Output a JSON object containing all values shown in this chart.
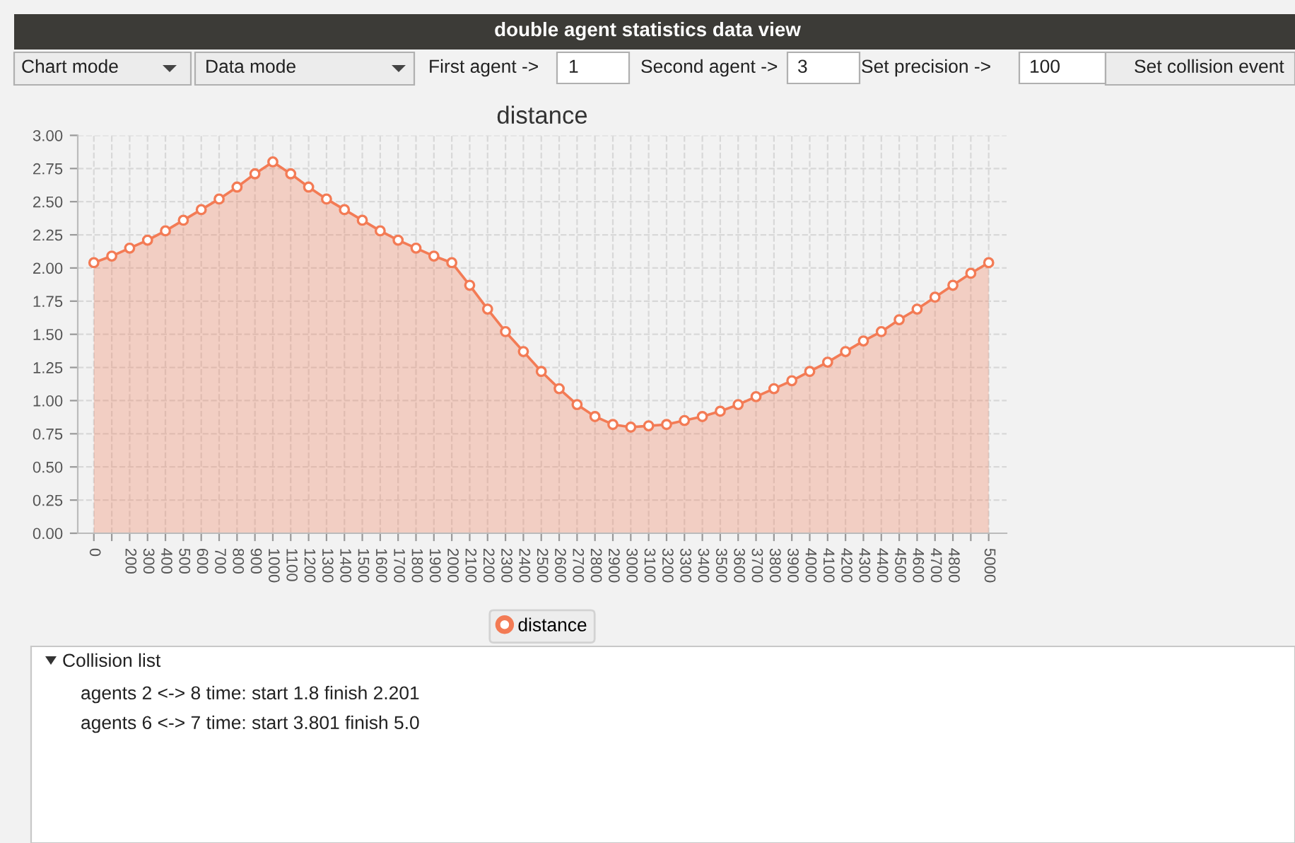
{
  "chart_data": {
    "type": "area",
    "title": "distance",
    "x": [
      0,
      100,
      200,
      300,
      400,
      500,
      600,
      700,
      800,
      900,
      1000,
      1100,
      1200,
      1300,
      1400,
      1500,
      1600,
      1700,
      1800,
      1900,
      2000,
      2100,
      2200,
      2300,
      2400,
      2500,
      2600,
      2700,
      2800,
      2900,
      3000,
      3100,
      3200,
      3300,
      3400,
      3500,
      3600,
      3700,
      3800,
      3900,
      4000,
      4100,
      4200,
      4300,
      4400,
      4500,
      4600,
      4700,
      4800,
      4900,
      5000
    ],
    "series": [
      {
        "name": "distance",
        "color": "#f37b55",
        "values": [
          2.04,
          2.09,
          2.15,
          2.21,
          2.28,
          2.36,
          2.44,
          2.52,
          2.61,
          2.71,
          2.8,
          2.71,
          2.61,
          2.52,
          2.44,
          2.36,
          2.28,
          2.21,
          2.15,
          2.09,
          2.04,
          1.87,
          1.69,
          1.52,
          1.37,
          1.22,
          1.09,
          0.97,
          0.88,
          0.82,
          0.8,
          0.81,
          0.82,
          0.85,
          0.88,
          0.92,
          0.97,
          1.03,
          1.09,
          1.15,
          1.22,
          1.29,
          1.37,
          1.45,
          1.52,
          1.61,
          1.69,
          1.78,
          1.87,
          1.96,
          2.04
        ]
      }
    ],
    "xlim": [
      -90,
      5100
    ],
    "xticks": [
      0,
      {
        "value": 100,
        "label": null
      },
      200,
      300,
      400,
      500,
      600,
      700,
      800,
      900,
      1000,
      1100,
      1200,
      1300,
      1400,
      1500,
      1600,
      1700,
      1800,
      1900,
      2000,
      2100,
      2200,
      2300,
      2400,
      2500,
      2600,
      2700,
      2800,
      2900,
      3000,
      3100,
      3200,
      3300,
      3400,
      3500,
      3600,
      3700,
      3800,
      3900,
      4000,
      4100,
      4200,
      4300,
      4400,
      4500,
      4600,
      4700,
      4800,
      {
        "value": 4900,
        "label": null
      },
      5000
    ],
    "ylim": [
      0,
      3
    ],
    "yticks": [
      {
        "value": 0,
        "label": "0.00"
      },
      {
        "value": 0.25,
        "label": "0.25"
      },
      {
        "value": 0.5,
        "label": "0.50"
      },
      {
        "value": 0.75,
        "label": "0.75"
      },
      {
        "value": 1,
        "label": "1.00"
      },
      {
        "value": 1.25,
        "label": "1.25"
      },
      {
        "value": 1.5,
        "label": "1.50"
      },
      {
        "value": 1.75,
        "label": "1.75"
      },
      {
        "value": 2,
        "label": "2.00"
      },
      {
        "value": 2.25,
        "label": "2.25"
      },
      {
        "value": 2.5,
        "label": "2.50"
      },
      {
        "value": 2.75,
        "label": "2.75"
      },
      {
        "value": 3,
        "label": "3.00"
      }
    ],
    "grid": true,
    "line_style": "solid",
    "marker": "circle",
    "legend": "bottom",
    "annotations": [
      "double agent statistics data view",
      "Chart mode",
      "Data mode",
      "First agent ->",
      "1",
      "Second agent ->",
      "3",
      "Set precision ->",
      "100",
      "Set collision event",
      "Collision list",
      "agents 2 <-> 8 time: start 1.8 finish 2.201",
      "agents 6 <-> 7 time: start 3.801 finish 5.0"
    ]
  }
}
